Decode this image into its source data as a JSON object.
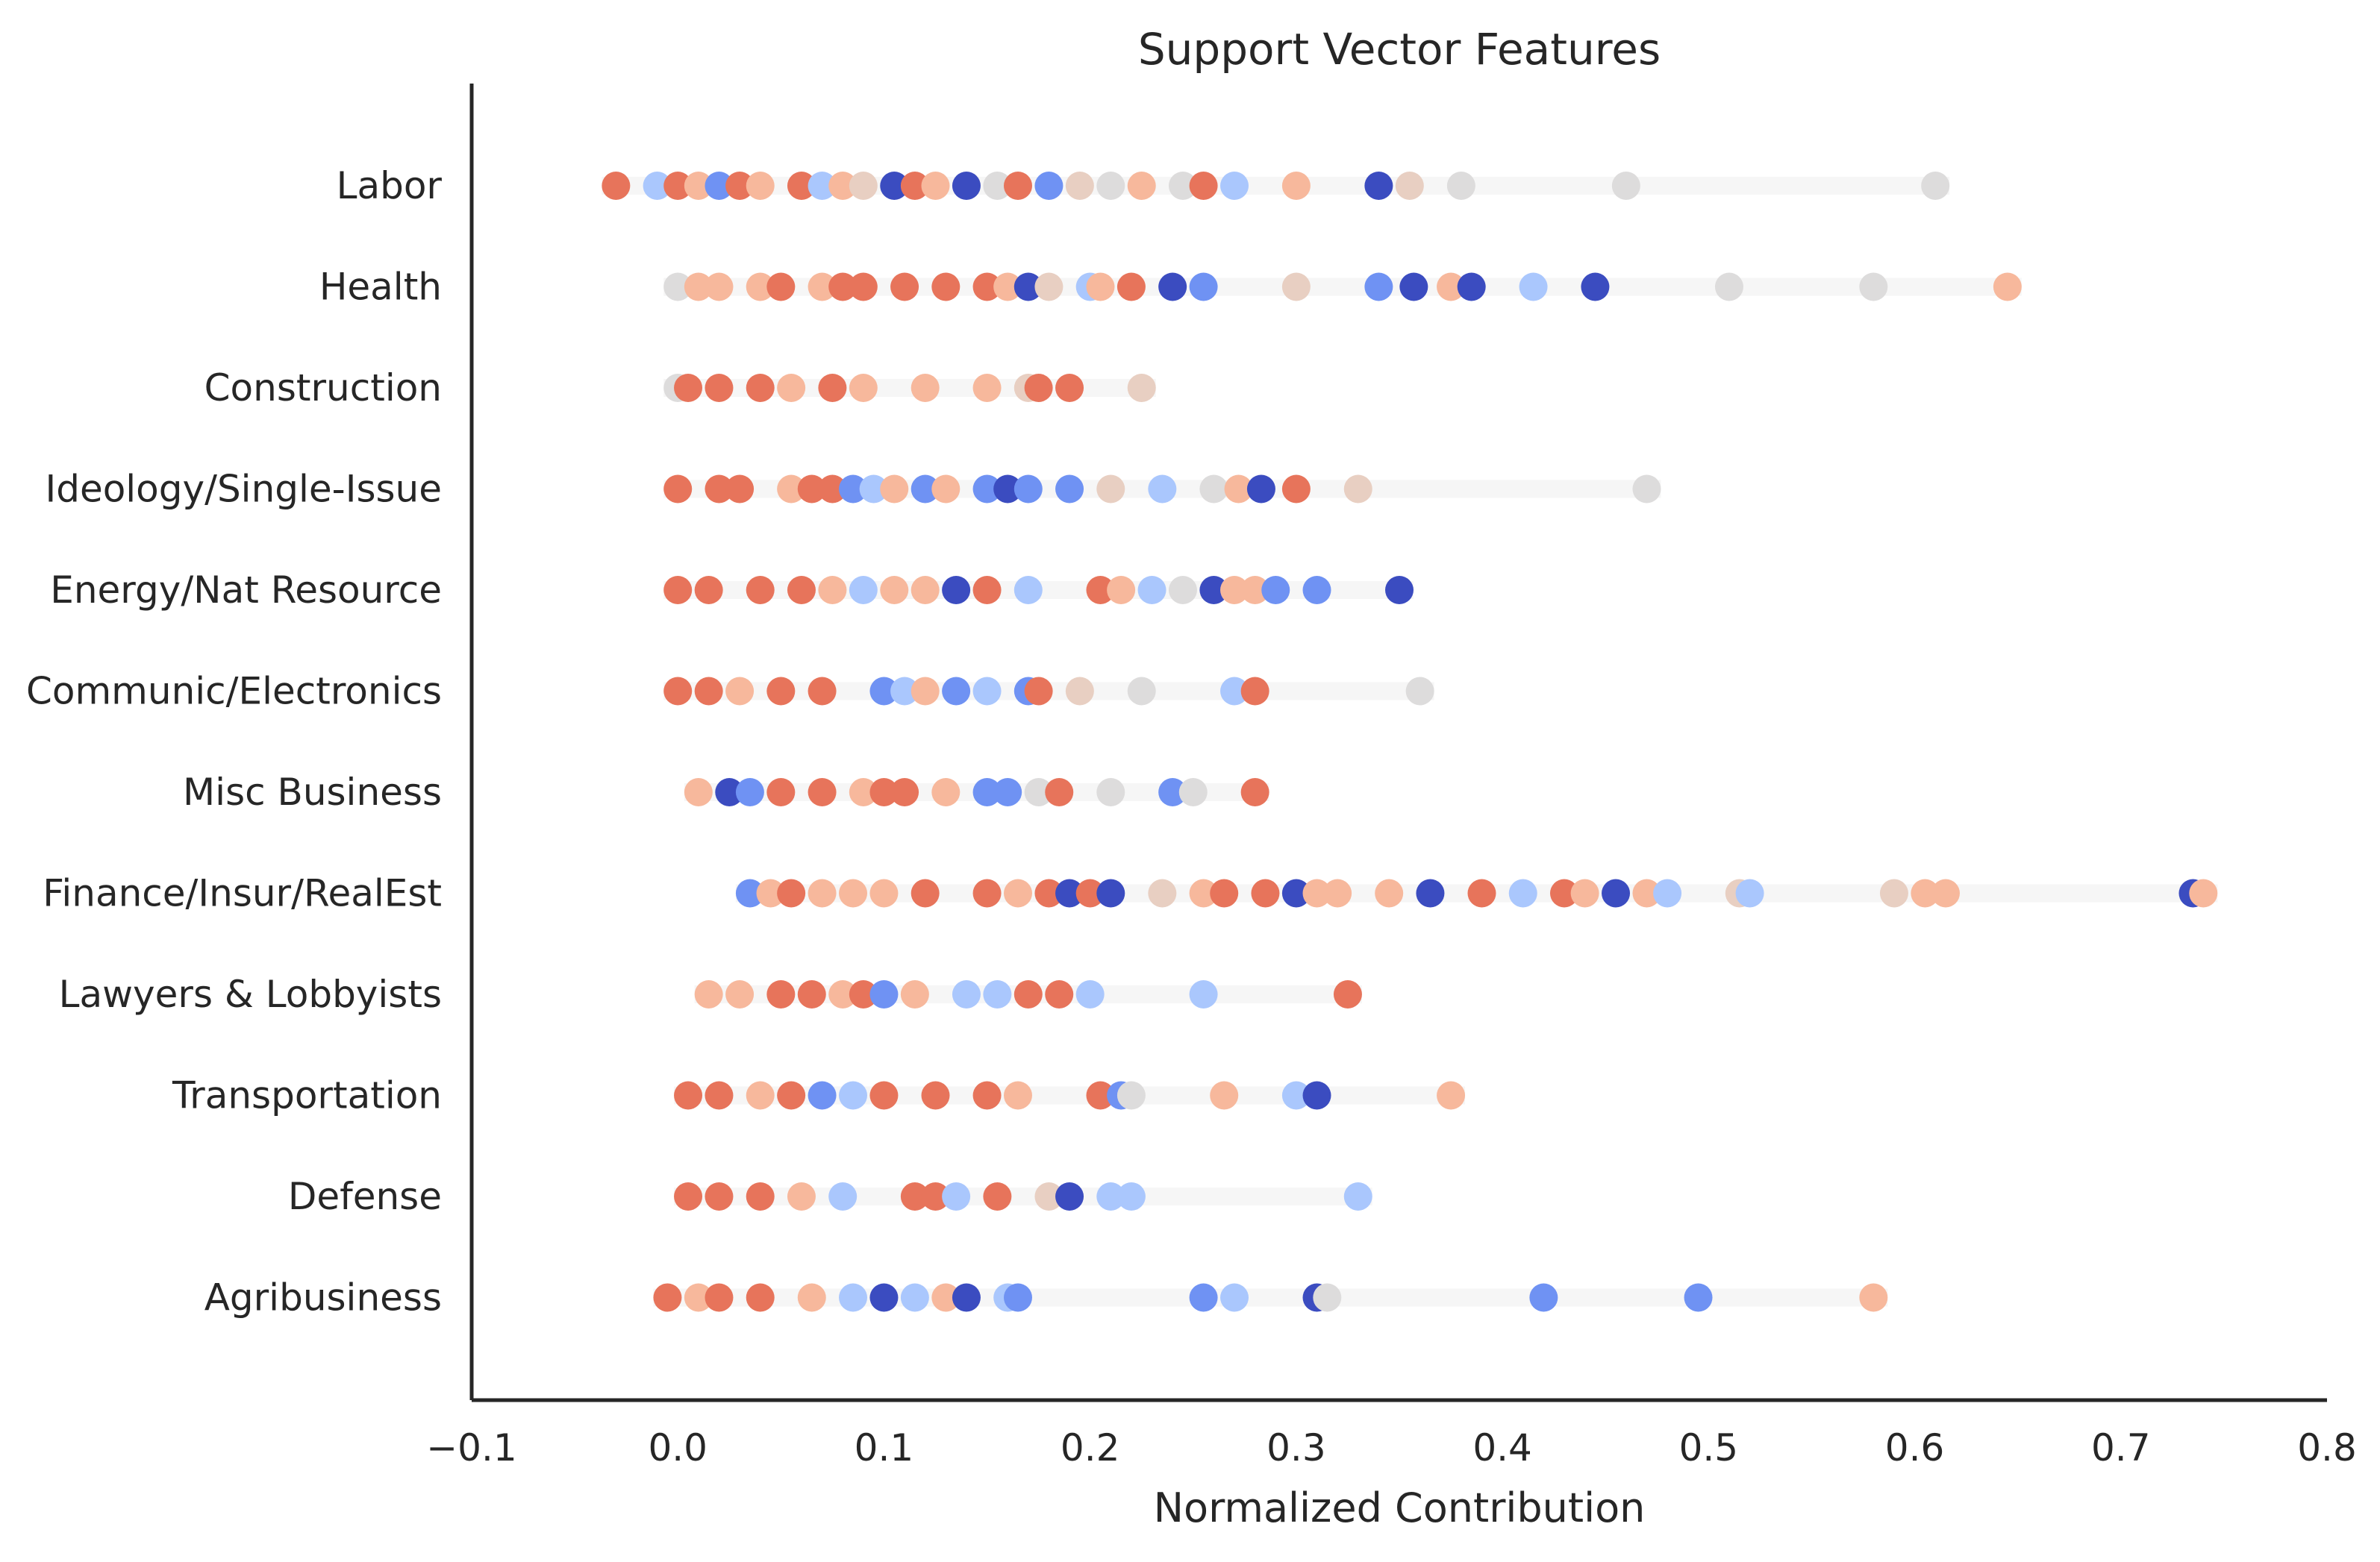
{
  "chart_data": {
    "type": "scatter",
    "title": "Support Vector Features",
    "xlabel": "Normalized Contribution",
    "ylabel": "",
    "xlim": [
      -0.1,
      0.8
    ],
    "x_ticks": [
      "−0.1",
      "0.0",
      "0.1",
      "0.2",
      "0.3",
      "0.4",
      "0.5",
      "0.6",
      "0.7",
      "0.8"
    ],
    "x_tick_values": [
      -0.1,
      0.0,
      0.1,
      0.2,
      0.3,
      0.4,
      0.5,
      0.6,
      0.7,
      0.8
    ],
    "grid": false,
    "legend": "none",
    "colormap": "coolwarm",
    "palette": {
      "deep_blue": "#3b4cc0",
      "blue": "#6f92f3",
      "light_blue": "#aac7fd",
      "neutral": "#dddcdc",
      "light_orange": "#f7b89c",
      "orange": "#e7745b",
      "faint": "#f2f2f2"
    },
    "categories": [
      "Labor",
      "Health",
      "Construction",
      "Ideology/Single-Issue",
      "Energy/Nat Resource",
      "Communic/Electronics",
      "Misc Business",
      "Finance/Insur/RealEst",
      "Lawyers & Lobbyists",
      "Transportation",
      "Defense",
      "Agribusiness"
    ],
    "series": [
      {
        "category": "Labor",
        "points": [
          {
            "x": -0.03,
            "c": 0.9
          },
          {
            "x": -0.01,
            "c": 0.3
          },
          {
            "x": 0.0,
            "c": 0.9
          },
          {
            "x": 0.01,
            "c": 0.75
          },
          {
            "x": 0.02,
            "c": 0.2
          },
          {
            "x": 0.03,
            "c": 0.9
          },
          {
            "x": 0.04,
            "c": 0.75
          },
          {
            "x": 0.06,
            "c": 0.9
          },
          {
            "x": 0.07,
            "c": 0.3
          },
          {
            "x": 0.08,
            "c": 0.75
          },
          {
            "x": 0.09,
            "c": 0.6
          },
          {
            "x": 0.105,
            "c": 0.05
          },
          {
            "x": 0.115,
            "c": 0.9
          },
          {
            "x": 0.125,
            "c": 0.75
          },
          {
            "x": 0.14,
            "c": 0.05
          },
          {
            "x": 0.155,
            "c": 0.45
          },
          {
            "x": 0.165,
            "c": 0.9
          },
          {
            "x": 0.18,
            "c": 0.2
          },
          {
            "x": 0.195,
            "c": 0.6
          },
          {
            "x": 0.21,
            "c": 0.45
          },
          {
            "x": 0.225,
            "c": 0.75
          },
          {
            "x": 0.245,
            "c": 0.5
          },
          {
            "x": 0.255,
            "c": 0.9
          },
          {
            "x": 0.27,
            "c": 0.35
          },
          {
            "x": 0.3,
            "c": 0.75
          },
          {
            "x": 0.34,
            "c": 0.1
          },
          {
            "x": 0.355,
            "c": 0.6
          },
          {
            "x": 0.38,
            "c": 0.5
          },
          {
            "x": 0.46,
            "c": 0.5
          },
          {
            "x": 0.61,
            "c": 0.5
          }
        ]
      },
      {
        "category": "Health",
        "points": [
          {
            "x": 0.0,
            "c": 0.5
          },
          {
            "x": 0.01,
            "c": 0.75
          },
          {
            "x": 0.02,
            "c": 0.75
          },
          {
            "x": 0.04,
            "c": 0.75
          },
          {
            "x": 0.05,
            "c": 0.9
          },
          {
            "x": 0.07,
            "c": 0.75
          },
          {
            "x": 0.08,
            "c": 0.9
          },
          {
            "x": 0.09,
            "c": 0.9
          },
          {
            "x": 0.11,
            "c": 0.9
          },
          {
            "x": 0.13,
            "c": 0.9
          },
          {
            "x": 0.15,
            "c": 0.9
          },
          {
            "x": 0.16,
            "c": 0.75
          },
          {
            "x": 0.17,
            "c": 0.05
          },
          {
            "x": 0.18,
            "c": 0.6
          },
          {
            "x": 0.2,
            "c": 0.3
          },
          {
            "x": 0.205,
            "c": 0.75
          },
          {
            "x": 0.22,
            "c": 0.9
          },
          {
            "x": 0.24,
            "c": 0.1
          },
          {
            "x": 0.255,
            "c": 0.2
          },
          {
            "x": 0.3,
            "c": 0.6
          },
          {
            "x": 0.34,
            "c": 0.15
          },
          {
            "x": 0.357,
            "c": 0.05
          },
          {
            "x": 0.375,
            "c": 0.75
          },
          {
            "x": 0.385,
            "c": 0.05
          },
          {
            "x": 0.415,
            "c": 0.3
          },
          {
            "x": 0.445,
            "c": 0.05
          },
          {
            "x": 0.51,
            "c": 0.5
          },
          {
            "x": 0.58,
            "c": 0.5
          },
          {
            "x": 0.645,
            "c": 0.75
          }
        ]
      },
      {
        "category": "Construction",
        "points": [
          {
            "x": 0.0,
            "c": 0.45
          },
          {
            "x": 0.005,
            "c": 0.9
          },
          {
            "x": 0.02,
            "c": 0.9
          },
          {
            "x": 0.04,
            "c": 0.9
          },
          {
            "x": 0.055,
            "c": 0.75
          },
          {
            "x": 0.075,
            "c": 0.9
          },
          {
            "x": 0.09,
            "c": 0.75
          },
          {
            "x": 0.12,
            "c": 0.75
          },
          {
            "x": 0.15,
            "c": 0.75
          },
          {
            "x": 0.17,
            "c": 0.6
          },
          {
            "x": 0.175,
            "c": 0.9
          },
          {
            "x": 0.19,
            "c": 0.9
          },
          {
            "x": 0.225,
            "c": 0.6
          }
        ]
      },
      {
        "category": "Ideology/Single-Issue",
        "points": [
          {
            "x": 0.0,
            "c": 0.9
          },
          {
            "x": 0.02,
            "c": 0.9
          },
          {
            "x": 0.03,
            "c": 0.9
          },
          {
            "x": 0.055,
            "c": 0.75
          },
          {
            "x": 0.065,
            "c": 0.9
          },
          {
            "x": 0.075,
            "c": 0.9
          },
          {
            "x": 0.085,
            "c": 0.15
          },
          {
            "x": 0.095,
            "c": 0.4
          },
          {
            "x": 0.105,
            "c": 0.75
          },
          {
            "x": 0.12,
            "c": 0.2
          },
          {
            "x": 0.13,
            "c": 0.75
          },
          {
            "x": 0.15,
            "c": 0.2
          },
          {
            "x": 0.16,
            "c": 0.1
          },
          {
            "x": 0.17,
            "c": 0.2
          },
          {
            "x": 0.19,
            "c": 0.2
          },
          {
            "x": 0.21,
            "c": 0.6
          },
          {
            "x": 0.235,
            "c": 0.4
          },
          {
            "x": 0.26,
            "c": 0.45
          },
          {
            "x": 0.272,
            "c": 0.75
          },
          {
            "x": 0.283,
            "c": 0.05
          },
          {
            "x": 0.3,
            "c": 0.9
          },
          {
            "x": 0.33,
            "c": 0.6
          },
          {
            "x": 0.47,
            "c": 0.5
          }
        ]
      },
      {
        "category": "Energy/Nat Resource",
        "points": [
          {
            "x": 0.0,
            "c": 0.9
          },
          {
            "x": 0.015,
            "c": 0.9
          },
          {
            "x": 0.04,
            "c": 0.9
          },
          {
            "x": 0.06,
            "c": 0.9
          },
          {
            "x": 0.075,
            "c": 0.75
          },
          {
            "x": 0.09,
            "c": 0.3
          },
          {
            "x": 0.105,
            "c": 0.75
          },
          {
            "x": 0.12,
            "c": 0.75
          },
          {
            "x": 0.135,
            "c": 0.05
          },
          {
            "x": 0.15,
            "c": 0.9
          },
          {
            "x": 0.17,
            "c": 0.35
          },
          {
            "x": 0.205,
            "c": 0.9
          },
          {
            "x": 0.215,
            "c": 0.75
          },
          {
            "x": 0.23,
            "c": 0.35
          },
          {
            "x": 0.245,
            "c": 0.5
          },
          {
            "x": 0.26,
            "c": 0.05
          },
          {
            "x": 0.27,
            "c": 0.75
          },
          {
            "x": 0.28,
            "c": 0.75
          },
          {
            "x": 0.29,
            "c": 0.15
          },
          {
            "x": 0.31,
            "c": 0.2
          },
          {
            "x": 0.35,
            "c": 0.05
          }
        ]
      },
      {
        "category": "Communic/Electronics",
        "points": [
          {
            "x": 0.0,
            "c": 0.9
          },
          {
            "x": 0.015,
            "c": 0.9
          },
          {
            "x": 0.03,
            "c": 0.75
          },
          {
            "x": 0.05,
            "c": 0.9
          },
          {
            "x": 0.07,
            "c": 0.9
          },
          {
            "x": 0.1,
            "c": 0.2
          },
          {
            "x": 0.11,
            "c": 0.3
          },
          {
            "x": 0.12,
            "c": 0.75
          },
          {
            "x": 0.135,
            "c": 0.2
          },
          {
            "x": 0.15,
            "c": 0.35
          },
          {
            "x": 0.17,
            "c": 0.2
          },
          {
            "x": 0.175,
            "c": 0.9
          },
          {
            "x": 0.195,
            "c": 0.6
          },
          {
            "x": 0.225,
            "c": 0.45
          },
          {
            "x": 0.27,
            "c": 0.35
          },
          {
            "x": 0.28,
            "c": 0.9
          },
          {
            "x": 0.36,
            "c": 0.5
          }
        ]
      },
      {
        "category": "Misc Business",
        "points": [
          {
            "x": 0.01,
            "c": 0.75
          },
          {
            "x": 0.025,
            "c": 0.05
          },
          {
            "x": 0.035,
            "c": 0.2
          },
          {
            "x": 0.05,
            "c": 0.9
          },
          {
            "x": 0.07,
            "c": 0.9
          },
          {
            "x": 0.09,
            "c": 0.75
          },
          {
            "x": 0.1,
            "c": 0.9
          },
          {
            "x": 0.11,
            "c": 0.9
          },
          {
            "x": 0.13,
            "c": 0.75
          },
          {
            "x": 0.15,
            "c": 0.15
          },
          {
            "x": 0.16,
            "c": 0.2
          },
          {
            "x": 0.175,
            "c": 0.45
          },
          {
            "x": 0.185,
            "c": 0.9
          },
          {
            "x": 0.21,
            "c": 0.45
          },
          {
            "x": 0.24,
            "c": 0.2
          },
          {
            "x": 0.25,
            "c": 0.5
          },
          {
            "x": 0.28,
            "c": 0.9
          }
        ]
      },
      {
        "category": "Finance/Insur/RealEst",
        "points": [
          {
            "x": 0.035,
            "c": 0.2
          },
          {
            "x": 0.045,
            "c": 0.75
          },
          {
            "x": 0.055,
            "c": 0.9
          },
          {
            "x": 0.07,
            "c": 0.75
          },
          {
            "x": 0.085,
            "c": 0.75
          },
          {
            "x": 0.1,
            "c": 0.75
          },
          {
            "x": 0.12,
            "c": 0.9
          },
          {
            "x": 0.15,
            "c": 0.9
          },
          {
            "x": 0.165,
            "c": 0.75
          },
          {
            "x": 0.18,
            "c": 0.9
          },
          {
            "x": 0.19,
            "c": 0.05
          },
          {
            "x": 0.2,
            "c": 0.9
          },
          {
            "x": 0.21,
            "c": 0.1
          },
          {
            "x": 0.235,
            "c": 0.6
          },
          {
            "x": 0.255,
            "c": 0.75
          },
          {
            "x": 0.265,
            "c": 0.9
          },
          {
            "x": 0.285,
            "c": 0.9
          },
          {
            "x": 0.3,
            "c": 0.05
          },
          {
            "x": 0.31,
            "c": 0.75
          },
          {
            "x": 0.32,
            "c": 0.75
          },
          {
            "x": 0.345,
            "c": 0.75
          },
          {
            "x": 0.365,
            "c": 0.05
          },
          {
            "x": 0.39,
            "c": 0.9
          },
          {
            "x": 0.41,
            "c": 0.35
          },
          {
            "x": 0.43,
            "c": 0.9
          },
          {
            "x": 0.44,
            "c": 0.75
          },
          {
            "x": 0.455,
            "c": 0.05
          },
          {
            "x": 0.47,
            "c": 0.75
          },
          {
            "x": 0.48,
            "c": 0.3
          },
          {
            "x": 0.515,
            "c": 0.6
          },
          {
            "x": 0.52,
            "c": 0.35
          },
          {
            "x": 0.59,
            "c": 0.6
          },
          {
            "x": 0.605,
            "c": 0.75
          },
          {
            "x": 0.615,
            "c": 0.75
          },
          {
            "x": 0.735,
            "c": 0.1
          },
          {
            "x": 0.74,
            "c": 0.75
          }
        ]
      },
      {
        "category": "Lawyers & Lobbyists",
        "points": [
          {
            "x": 0.015,
            "c": 0.75
          },
          {
            "x": 0.03,
            "c": 0.75
          },
          {
            "x": 0.05,
            "c": 0.9
          },
          {
            "x": 0.065,
            "c": 0.9
          },
          {
            "x": 0.08,
            "c": 0.75
          },
          {
            "x": 0.09,
            "c": 0.9
          },
          {
            "x": 0.1,
            "c": 0.2
          },
          {
            "x": 0.115,
            "c": 0.75
          },
          {
            "x": 0.14,
            "c": 0.3
          },
          {
            "x": 0.155,
            "c": 0.35
          },
          {
            "x": 0.17,
            "c": 0.9
          },
          {
            "x": 0.185,
            "c": 0.9
          },
          {
            "x": 0.2,
            "c": 0.35
          },
          {
            "x": 0.255,
            "c": 0.3
          },
          {
            "x": 0.325,
            "c": 0.9
          }
        ]
      },
      {
        "category": "Transportation",
        "points": [
          {
            "x": 0.005,
            "c": 0.9
          },
          {
            "x": 0.02,
            "c": 0.9
          },
          {
            "x": 0.04,
            "c": 0.75
          },
          {
            "x": 0.055,
            "c": 0.9
          },
          {
            "x": 0.07,
            "c": 0.2
          },
          {
            "x": 0.085,
            "c": 0.3
          },
          {
            "x": 0.1,
            "c": 0.9
          },
          {
            "x": 0.125,
            "c": 0.9
          },
          {
            "x": 0.15,
            "c": 0.9
          },
          {
            "x": 0.165,
            "c": 0.75
          },
          {
            "x": 0.205,
            "c": 0.9
          },
          {
            "x": 0.215,
            "c": 0.15
          },
          {
            "x": 0.22,
            "c": 0.5
          },
          {
            "x": 0.265,
            "c": 0.75
          },
          {
            "x": 0.3,
            "c": 0.3
          },
          {
            "x": 0.31,
            "c": 0.05
          },
          {
            "x": 0.375,
            "c": 0.75
          }
        ]
      },
      {
        "category": "Defense",
        "points": [
          {
            "x": 0.005,
            "c": 0.9
          },
          {
            "x": 0.02,
            "c": 0.9
          },
          {
            "x": 0.04,
            "c": 0.9
          },
          {
            "x": 0.06,
            "c": 0.75
          },
          {
            "x": 0.08,
            "c": 0.3
          },
          {
            "x": 0.115,
            "c": 0.9
          },
          {
            "x": 0.125,
            "c": 0.9
          },
          {
            "x": 0.135,
            "c": 0.3
          },
          {
            "x": 0.155,
            "c": 0.9
          },
          {
            "x": 0.18,
            "c": 0.6
          },
          {
            "x": 0.19,
            "c": 0.1
          },
          {
            "x": 0.21,
            "c": 0.3
          },
          {
            "x": 0.22,
            "c": 0.3
          },
          {
            "x": 0.33,
            "c": 0.3
          }
        ]
      },
      {
        "category": "Agribusiness",
        "points": [
          {
            "x": -0.005,
            "c": 0.9
          },
          {
            "x": 0.01,
            "c": 0.75
          },
          {
            "x": 0.02,
            "c": 0.9
          },
          {
            "x": 0.04,
            "c": 0.9
          },
          {
            "x": 0.065,
            "c": 0.75
          },
          {
            "x": 0.085,
            "c": 0.4
          },
          {
            "x": 0.1,
            "c": 0.05
          },
          {
            "x": 0.115,
            "c": 0.3
          },
          {
            "x": 0.13,
            "c": 0.75
          },
          {
            "x": 0.14,
            "c": 0.1
          },
          {
            "x": 0.16,
            "c": 0.3
          },
          {
            "x": 0.165,
            "c": 0.15
          },
          {
            "x": 0.255,
            "c": 0.15
          },
          {
            "x": 0.27,
            "c": 0.3
          },
          {
            "x": 0.31,
            "c": 0.05
          },
          {
            "x": 0.315,
            "c": 0.5
          },
          {
            "x": 0.42,
            "c": 0.15
          },
          {
            "x": 0.495,
            "c": 0.15
          },
          {
            "x": 0.58,
            "c": 0.75
          }
        ]
      }
    ]
  }
}
